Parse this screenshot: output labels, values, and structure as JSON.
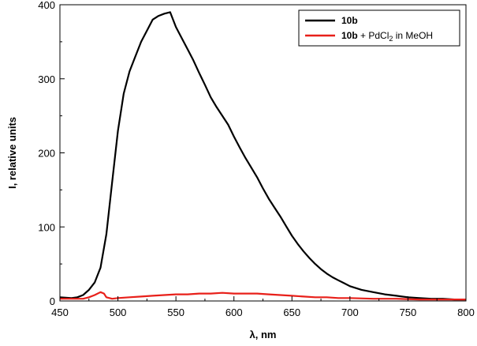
{
  "chart_data": {
    "type": "line",
    "title": "",
    "xlabel": "λ, nm",
    "ylabel": "I, relative units",
    "xlim": [
      450,
      800
    ],
    "ylim": [
      0,
      400
    ],
    "x_ticks": [
      450,
      500,
      550,
      600,
      650,
      700,
      750,
      800
    ],
    "y_ticks": [
      0,
      100,
      200,
      300,
      400
    ],
    "x_tick_labels": [
      "450",
      "500",
      "550",
      "600",
      "650",
      "700",
      "750",
      "800"
    ],
    "y_tick_labels": [
      "0",
      "100",
      "200",
      "300",
      "400"
    ],
    "grid": false,
    "legend": {
      "placement": "top-right",
      "entries": [
        {
          "bold": "10b",
          "rest": "",
          "color": "#000000"
        },
        {
          "bold": "10b",
          "rest": " + PdCl",
          "sub": "2",
          "tail": " in MeOH",
          "color": "#e8201a"
        }
      ]
    },
    "series": [
      {
        "color": "#000000",
        "points": [
          [
            450,
            5
          ],
          [
            460,
            4
          ],
          [
            465,
            5
          ],
          [
            470,
            8
          ],
          [
            475,
            15
          ],
          [
            480,
            25
          ],
          [
            485,
            45
          ],
          [
            490,
            90
          ],
          [
            495,
            160
          ],
          [
            500,
            230
          ],
          [
            505,
            280
          ],
          [
            510,
            310
          ],
          [
            515,
            330
          ],
          [
            520,
            350
          ],
          [
            525,
            365
          ],
          [
            530,
            380
          ],
          [
            535,
            385
          ],
          [
            540,
            388
          ],
          [
            545,
            390
          ],
          [
            550,
            370
          ],
          [
            555,
            355
          ],
          [
            560,
            340
          ],
          [
            565,
            325
          ],
          [
            570,
            308
          ],
          [
            575,
            292
          ],
          [
            580,
            275
          ],
          [
            585,
            262
          ],
          [
            590,
            250
          ],
          [
            595,
            238
          ],
          [
            600,
            222
          ],
          [
            605,
            207
          ],
          [
            610,
            193
          ],
          [
            615,
            180
          ],
          [
            620,
            167
          ],
          [
            625,
            152
          ],
          [
            630,
            138
          ],
          [
            635,
            126
          ],
          [
            640,
            114
          ],
          [
            645,
            101
          ],
          [
            650,
            88
          ],
          [
            655,
            77
          ],
          [
            660,
            67
          ],
          [
            665,
            58
          ],
          [
            670,
            50
          ],
          [
            675,
            43
          ],
          [
            680,
            37
          ],
          [
            685,
            32
          ],
          [
            690,
            28
          ],
          [
            695,
            24
          ],
          [
            700,
            20
          ],
          [
            710,
            15
          ],
          [
            720,
            12
          ],
          [
            730,
            9
          ],
          [
            740,
            7
          ],
          [
            750,
            5
          ],
          [
            760,
            4
          ],
          [
            770,
            3
          ],
          [
            780,
            3
          ],
          [
            790,
            2
          ],
          [
            800,
            2
          ]
        ]
      },
      {
        "color": "#e8201a",
        "points": [
          [
            450,
            3
          ],
          [
            460,
            3
          ],
          [
            470,
            3
          ],
          [
            475,
            5
          ],
          [
            480,
            8
          ],
          [
            485,
            12
          ],
          [
            488,
            10
          ],
          [
            490,
            5
          ],
          [
            495,
            3
          ],
          [
            500,
            4
          ],
          [
            510,
            5
          ],
          [
            520,
            6
          ],
          [
            530,
            7
          ],
          [
            540,
            8
          ],
          [
            550,
            9
          ],
          [
            560,
            9
          ],
          [
            570,
            10
          ],
          [
            580,
            10
          ],
          [
            590,
            11
          ],
          [
            600,
            10
          ],
          [
            610,
            10
          ],
          [
            620,
            10
          ],
          [
            630,
            9
          ],
          [
            640,
            8
          ],
          [
            650,
            7
          ],
          [
            660,
            6
          ],
          [
            670,
            5
          ],
          [
            680,
            5
          ],
          [
            690,
            4
          ],
          [
            700,
            4
          ],
          [
            720,
            3
          ],
          [
            740,
            3
          ],
          [
            760,
            2
          ],
          [
            780,
            2
          ],
          [
            800,
            2
          ]
        ]
      }
    ]
  }
}
